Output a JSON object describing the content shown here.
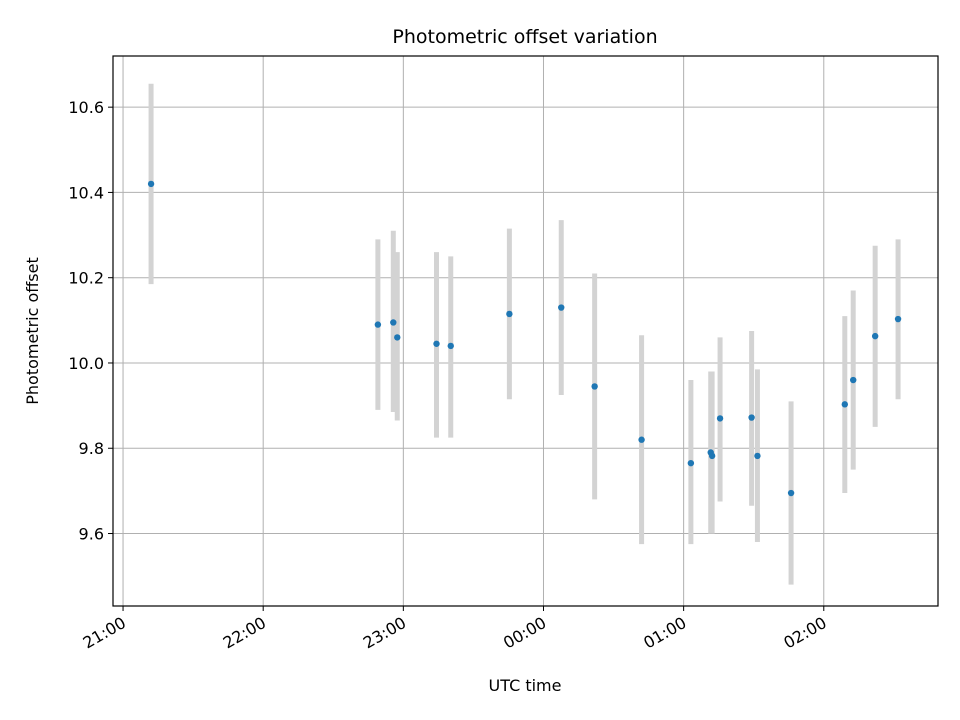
{
  "chart_data": {
    "type": "scatter",
    "title": "Photometric offset variation",
    "xlabel": "UTC time",
    "ylabel": "Photometric offset",
    "x_ticks": [
      {
        "t": 0,
        "label": "21:00"
      },
      {
        "t": 60,
        "label": "22:00"
      },
      {
        "t": 120,
        "label": "23:00"
      },
      {
        "t": 180,
        "label": "00:00"
      },
      {
        "t": 240,
        "label": "01:00"
      },
      {
        "t": 300,
        "label": "02:00"
      }
    ],
    "y_ticks": [
      9.6,
      9.8,
      10.0,
      10.2,
      10.4,
      10.6
    ],
    "y_tick_labels": [
      "9.6",
      "9.8",
      "10.0",
      "10.2",
      "10.4",
      "10.6"
    ],
    "xlim": [
      -4.3,
      348.9
    ],
    "ylim": [
      9.43,
      10.72
    ],
    "grid": true,
    "marker_color": "#1f77b4",
    "errorbar_color": "#d3d3d3",
    "points": [
      {
        "t": 12.0,
        "y": 10.42,
        "lo": 10.185,
        "hi": 10.655
      },
      {
        "t": 109.1,
        "y": 10.09,
        "lo": 9.89,
        "hi": 10.29
      },
      {
        "t": 115.7,
        "y": 10.095,
        "lo": 9.885,
        "hi": 10.31
      },
      {
        "t": 117.4,
        "y": 10.06,
        "lo": 9.865,
        "hi": 10.26
      },
      {
        "t": 134.2,
        "y": 10.045,
        "lo": 9.825,
        "hi": 10.26
      },
      {
        "t": 140.3,
        "y": 10.04,
        "lo": 9.825,
        "hi": 10.25
      },
      {
        "t": 165.4,
        "y": 10.115,
        "lo": 9.915,
        "hi": 10.315
      },
      {
        "t": 187.6,
        "y": 10.13,
        "lo": 9.925,
        "hi": 10.335
      },
      {
        "t": 201.9,
        "y": 9.945,
        "lo": 9.68,
        "hi": 10.21
      },
      {
        "t": 222.0,
        "y": 9.82,
        "lo": 9.575,
        "hi": 10.065
      },
      {
        "t": 243.1,
        "y": 9.765,
        "lo": 9.575,
        "hi": 9.96
      },
      {
        "t": 251.6,
        "y": 9.79,
        "lo": 9.6,
        "hi": 9.98
      },
      {
        "t": 252.2,
        "y": 9.782,
        "lo": 9.6,
        "hi": 9.98
      },
      {
        "t": 255.6,
        "y": 9.87,
        "lo": 9.675,
        "hi": 10.06
      },
      {
        "t": 269.1,
        "y": 9.872,
        "lo": 9.665,
        "hi": 10.075
      },
      {
        "t": 271.6,
        "y": 9.782,
        "lo": 9.58,
        "hi": 9.985
      },
      {
        "t": 286.0,
        "y": 9.695,
        "lo": 9.48,
        "hi": 9.91
      },
      {
        "t": 309.0,
        "y": 9.903,
        "lo": 9.695,
        "hi": 10.11
      },
      {
        "t": 312.6,
        "y": 9.96,
        "lo": 9.75,
        "hi": 10.17
      },
      {
        "t": 322.0,
        "y": 10.063,
        "lo": 9.85,
        "hi": 10.275
      },
      {
        "t": 331.8,
        "y": 10.103,
        "lo": 9.915,
        "hi": 10.29
      }
    ]
  }
}
